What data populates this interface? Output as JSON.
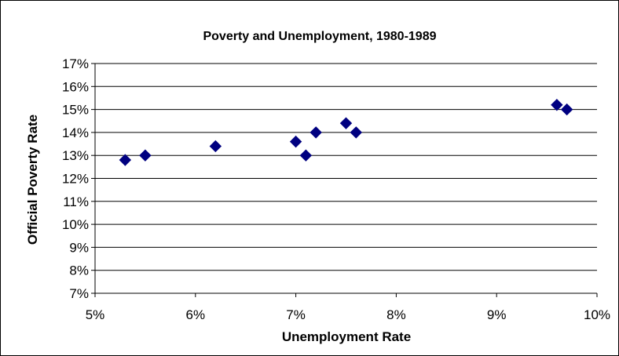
{
  "chart_data": {
    "type": "scatter",
    "title": "Poverty and Unemployment, 1980-1989",
    "xlabel": "Unemployment Rate",
    "ylabel": "Official Poverty Rate",
    "xlim": [
      5,
      10
    ],
    "ylim": [
      7,
      17
    ],
    "x_ticks": [
      "5%",
      "6%",
      "7%",
      "8%",
      "9%",
      "10%"
    ],
    "y_ticks": [
      "7%",
      "8%",
      "9%",
      "10%",
      "11%",
      "12%",
      "13%",
      "14%",
      "15%",
      "16%",
      "17%"
    ],
    "grid": "horizontal",
    "marker": "diamond",
    "marker_color": "#000080",
    "points": [
      {
        "x": 5.3,
        "y": 12.8
      },
      {
        "x": 5.5,
        "y": 13.0
      },
      {
        "x": 6.2,
        "y": 13.4
      },
      {
        "x": 7.0,
        "y": 13.6
      },
      {
        "x": 7.1,
        "y": 13.0
      },
      {
        "x": 7.2,
        "y": 14.0
      },
      {
        "x": 7.5,
        "y": 14.4
      },
      {
        "x": 7.6,
        "y": 14.0
      },
      {
        "x": 9.6,
        "y": 15.2
      },
      {
        "x": 9.7,
        "y": 15.0
      }
    ]
  }
}
